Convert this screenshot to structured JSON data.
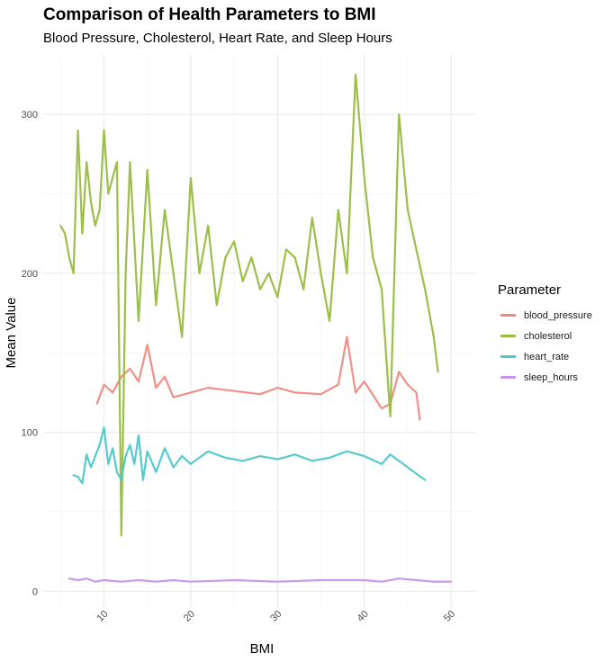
{
  "chart_data": {
    "type": "line",
    "title": "Comparison of Health Parameters to BMI",
    "subtitle": "Blood Pressure, Cholesterol, Heart Rate, and Sleep Hours",
    "xlabel": "BMI",
    "ylabel": "Mean Value",
    "xlim": [
      3,
      53
    ],
    "ylim": [
      -10,
      338
    ],
    "x_ticks": [
      10,
      20,
      30,
      40,
      50
    ],
    "y_ticks": [
      0,
      100,
      200,
      300
    ],
    "grid": true,
    "legend_title": "Parameter",
    "legend_position": "right",
    "series": [
      {
        "name": "blood_pressure",
        "color": "#F08A80",
        "x": [
          9.2,
          10.0,
          11.0,
          12.0,
          13.0,
          14.0,
          15.0,
          16.0,
          17.0,
          18.0,
          20.0,
          22.0,
          25.0,
          28.0,
          30.0,
          32.0,
          35.0,
          37.0,
          38.0,
          39.0,
          40.0,
          42.0,
          43.0,
          44.0,
          45.0,
          46.0,
          46.4
        ],
        "values": [
          118,
          130,
          125,
          135,
          140,
          132,
          155,
          128,
          135,
          122,
          125,
          128,
          126,
          124,
          128,
          125,
          124,
          130,
          160,
          125,
          132,
          115,
          118,
          138,
          130,
          125,
          108
        ]
      },
      {
        "name": "cholesterol",
        "color": "#97BC40",
        "x": [
          5.0,
          5.5,
          6.0,
          6.5,
          7.0,
          7.5,
          8.0,
          8.5,
          9.0,
          9.5,
          10.0,
          10.5,
          11.0,
          11.5,
          12.0,
          12.5,
          13.0,
          14.0,
          15.0,
          16.0,
          17.0,
          18.0,
          19.0,
          20.0,
          21.0,
          22.0,
          23.0,
          24.0,
          25.0,
          26.0,
          27.0,
          28.0,
          29.0,
          30.0,
          31.0,
          32.0,
          33.0,
          34.0,
          35.0,
          36.0,
          37.0,
          38.0,
          39.0,
          40.0,
          41.0,
          42.0,
          43.0,
          44.0,
          45.0,
          46.0,
          47.0,
          48.0,
          48.5
        ],
        "values": [
          230,
          225,
          210,
          200,
          290,
          225,
          270,
          245,
          230,
          240,
          290,
          250,
          260,
          270,
          35,
          200,
          270,
          170,
          265,
          180,
          240,
          200,
          160,
          260,
          200,
          230,
          180,
          210,
          220,
          195,
          210,
          190,
          200,
          185,
          215,
          210,
          190,
          235,
          200,
          170,
          240,
          200,
          325,
          260,
          210,
          190,
          110,
          300,
          240,
          215,
          190,
          160,
          138
        ]
      },
      {
        "name": "heart_rate",
        "color": "#4EC7CB",
        "x": [
          6.5,
          7.0,
          7.5,
          8.0,
          8.5,
          9.0,
          9.5,
          10.0,
          10.5,
          11.0,
          11.5,
          12.0,
          12.5,
          13.0,
          13.5,
          14.0,
          14.5,
          15.0,
          16.0,
          17.0,
          18.0,
          19.0,
          20.0,
          22.0,
          24.0,
          26.0,
          28.0,
          30.0,
          32.0,
          34.0,
          36.0,
          38.0,
          40.0,
          42.0,
          43.0,
          44.0,
          45.0,
          46.0,
          47.0
        ],
        "values": [
          73,
          72,
          68,
          86,
          78,
          85,
          92,
          103,
          80,
          90,
          75,
          70,
          85,
          92,
          80,
          98,
          70,
          88,
          75,
          90,
          78,
          85,
          80,
          88,
          84,
          82,
          85,
          83,
          86,
          82,
          84,
          88,
          85,
          80,
          86,
          82,
          78,
          74,
          70
        ]
      },
      {
        "name": "sleep_hours",
        "color": "#C693EE",
        "x": [
          6.0,
          7.0,
          8.0,
          9.0,
          10.0,
          12.0,
          14.0,
          16.0,
          18.0,
          20.0,
          25.0,
          30.0,
          35.0,
          40.0,
          42.0,
          44.0,
          46.0,
          48.0,
          50.0
        ],
        "values": [
          8,
          7,
          8,
          6,
          7,
          6,
          7,
          6,
          7,
          6,
          7,
          6,
          7,
          7,
          6,
          8,
          7,
          6,
          6
        ]
      }
    ]
  }
}
